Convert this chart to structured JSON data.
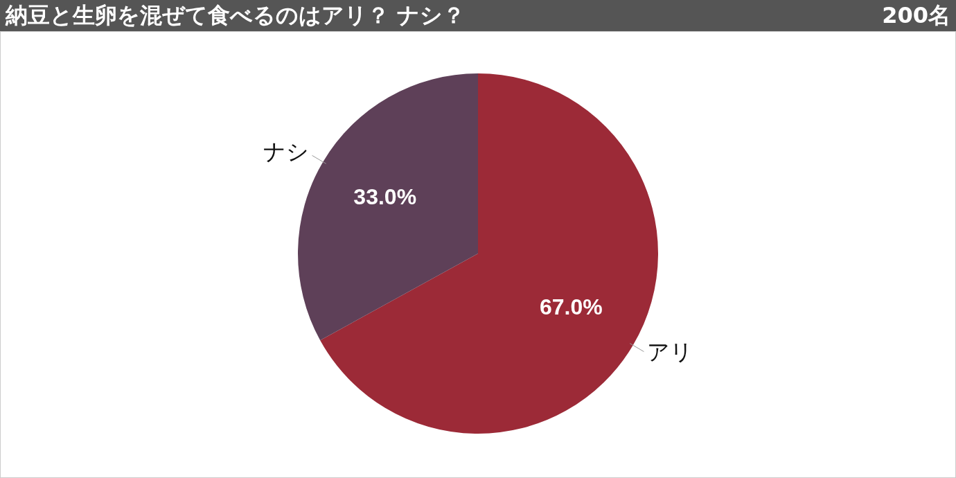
{
  "chart_data": {
    "type": "pie",
    "title": "納豆と生卵を混ぜて食べるのはアリ？ ナシ？",
    "subtitle": "200名",
    "categories": [
      "アリ",
      "ナシ"
    ],
    "values": [
      67.0,
      33.0
    ],
    "value_labels": [
      "67.0%",
      "33.0%"
    ],
    "colors": [
      "#9c2a37",
      "#5e4058"
    ],
    "legend": false
  }
}
